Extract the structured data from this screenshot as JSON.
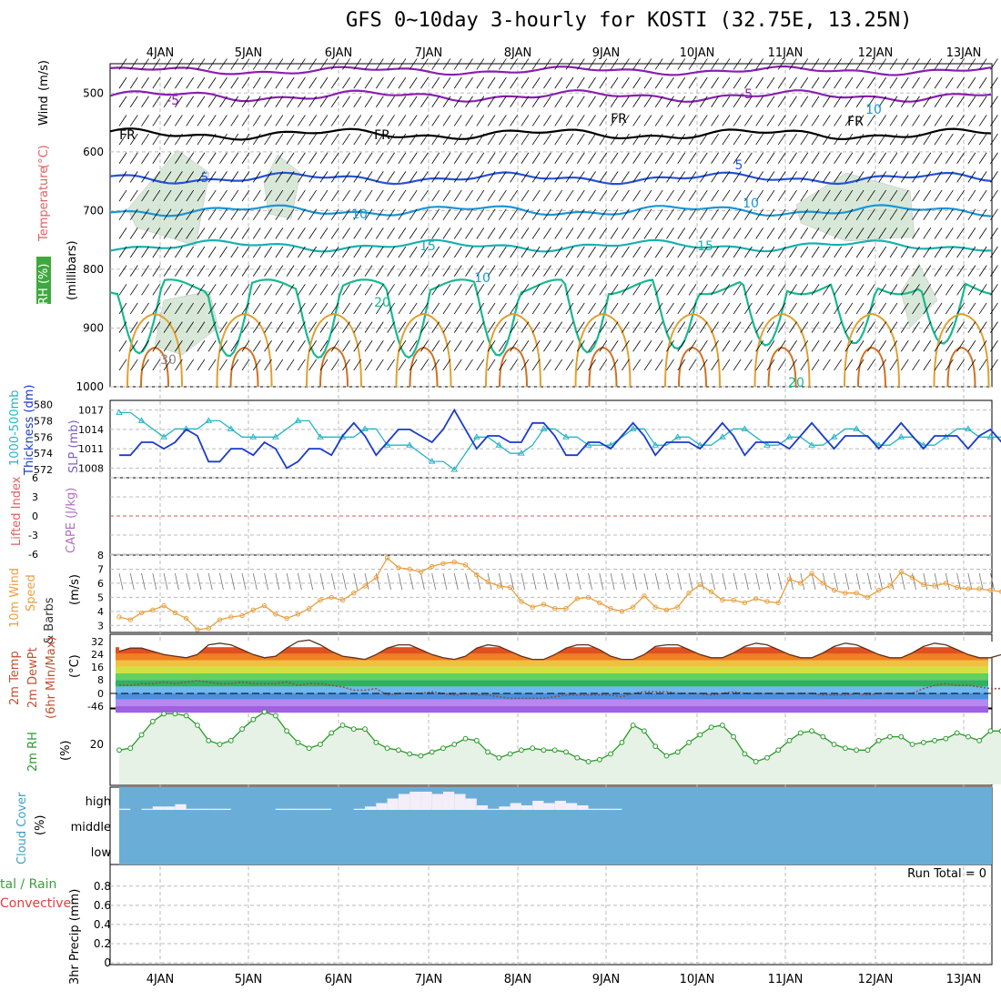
{
  "title": "GFS 0~10day 3-hourly for KOSTI (32.75E, 13.25N)",
  "date_labels": [
    "4JAN",
    "5JAN",
    "6JAN",
    "7JAN",
    "8JAN",
    "9JAN",
    "10JAN",
    "11JAN",
    "12JAN",
    "13JAN"
  ],
  "colors": {
    "grid": "#bbbbbb",
    "rh_shade": "#cfe3cf",
    "temp_minus5": "#8a1fb0",
    "freezing": "#000000",
    "temp_5": "#2452d8",
    "temp_10": "#1a96d8",
    "temp_15": "#18b0b0",
    "temp_20": "#18b890",
    "temp_warm": "#e0a030",
    "slp": "#1a3cc8",
    "thickness": "#29b4c4",
    "lifted_zero": "#e05050",
    "wind10m": "#e8a040",
    "cloud_bg": "#6aaed8",
    "rh2m_line": "#2a9a2a"
  },
  "chart_data": [
    {
      "type": "contour",
      "panel": "upper-air",
      "ylabel_parts": [
        "RH (%)",
        "Temperature",
        "(°C)",
        "Wind",
        "(m/s)"
      ],
      "ylabel_sub": "(millibars)",
      "y_ticks": [
        500,
        600,
        700,
        800,
        900,
        1000
      ],
      "ylim": [
        1000,
        450
      ],
      "contour_labels": [
        "-5",
        "-5",
        "FR",
        "FR",
        "FR",
        "FR",
        "5",
        "5",
        "10",
        "10",
        "15",
        "15",
        "20",
        "20",
        "10",
        "10",
        "30"
      ],
      "isotherms": [
        {
          "name": "-5",
          "pressure_mb": 505
        },
        {
          "name": "FR",
          "pressure_mb": 570
        },
        {
          "name": "5",
          "pressure_mb": 645
        },
        {
          "name": "10",
          "pressure_mb": 700
        },
        {
          "name": "15",
          "pressure_mb": 760
        }
      ]
    },
    {
      "type": "line",
      "panel": "slp-thickness",
      "ylabel_left": [
        "1000-500mb",
        "Thickness (dm)"
      ],
      "ylabel_right": "SLP (mb)",
      "left_ticks": [
        572,
        574,
        576,
        578,
        580
      ],
      "right_ticks": [
        1008,
        1011,
        1014,
        1017
      ],
      "left_lim": [
        571,
        580.5
      ],
      "right_lim": [
        1006.5,
        1018.5
      ],
      "series": [
        {
          "name": "SLP (mb)",
          "axis": "right",
          "values": [
            1010,
            1010,
            1012,
            1012,
            1011,
            1012,
            1014,
            1013,
            1009,
            1009,
            1011,
            1011,
            1010,
            1012,
            1011,
            1008,
            1009,
            1011,
            1011,
            1010,
            1013,
            1015,
            1013,
            1010,
            1012,
            1014,
            1014,
            1013,
            1012,
            1014,
            1017,
            1014,
            1011,
            1013,
            1013,
            1012,
            1012,
            1015,
            1015,
            1013,
            1010,
            1010,
            1012,
            1012,
            1011,
            1013,
            1015,
            1013,
            1010,
            1012,
            1012,
            1012,
            1011,
            1013,
            1015,
            1013,
            1010,
            1012,
            1012,
            1012,
            1011,
            1013,
            1015,
            1013,
            1011,
            1013,
            1013,
            1013,
            1011,
            1013,
            1015,
            1013,
            1011,
            1013,
            1013,
            1013,
            1011,
            1013,
            1014,
            1012,
            1010,
            1010,
            1012,
            1012
          ]
        },
        {
          "name": "Thickness (dm)",
          "axis": "left",
          "values": [
            579,
            579,
            578,
            577,
            576,
            577,
            577,
            577,
            578,
            578,
            577,
            576,
            576,
            576,
            576,
            577,
            578,
            578,
            576,
            576,
            576,
            576,
            577,
            577,
            575,
            575,
            575,
            574,
            573,
            573,
            572,
            574,
            576,
            576,
            575,
            574,
            574,
            575,
            577,
            577,
            576,
            576,
            575,
            575,
            575,
            576,
            577,
            577,
            575,
            575,
            576,
            576,
            575,
            575,
            576,
            577,
            577,
            576,
            575,
            575,
            576,
            576,
            575,
            575,
            576,
            577,
            577,
            576,
            575,
            575,
            576,
            576,
            575,
            575,
            576,
            577,
            577,
            576,
            576,
            576,
            577,
            577,
            576,
            577
          ]
        }
      ]
    },
    {
      "type": "line",
      "panel": "stability",
      "ylabel_left": "Lifted Index",
      "ylabel_right": "CAPE (J/kg)",
      "y_ticks": [
        6,
        3,
        0,
        -3,
        -6
      ],
      "ylim": [
        -6,
        6
      ],
      "series": []
    },
    {
      "type": "line",
      "panel": "wind10m",
      "ylabel": [
        "10m Wind",
        "Speed",
        "& Barbs",
        "(m/s)"
      ],
      "y_ticks": [
        3,
        4,
        5,
        6,
        7,
        8
      ],
      "ylim": [
        2.5,
        8
      ],
      "series": [
        {
          "name": "10m Wind Speed",
          "values": [
            3.6,
            3.4,
            3.9,
            4.1,
            4.4,
            3.9,
            3.5,
            2.7,
            2.8,
            3.4,
            3.6,
            3.7,
            4.1,
            4.4,
            3.8,
            3.5,
            3.8,
            4.2,
            4.8,
            5.0,
            4.8,
            5.3,
            5.8,
            6.4,
            7.8,
            7.1,
            7.0,
            6.8,
            7.2,
            7.4,
            7.5,
            7.3,
            6.6,
            6.1,
            5.8,
            5.7,
            4.7,
            4.3,
            4.5,
            4.2,
            4.2,
            4.9,
            5.0,
            4.6,
            4.2,
            4.0,
            4.3,
            5.1,
            4.3,
            4.1,
            4.3,
            5.3,
            5.9,
            5.4,
            4.8,
            4.8,
            4.6,
            4.9,
            4.7,
            4.6,
            6.3,
            6.0,
            6.7,
            6.0,
            5.5,
            5.3,
            5.3,
            5.0,
            5.5,
            5.8,
            6.8,
            6.4,
            5.9,
            5.8,
            6.0,
            5.7,
            5.6,
            5.6,
            5.5,
            5.4,
            6.2,
            5.4,
            5.6,
            5.9
          ]
        }
      ]
    },
    {
      "type": "area",
      "panel": "temp2m",
      "ylabel": [
        "2m Temp",
        "2m DewPt",
        "(6hr Min/Max)",
        "(°C)"
      ],
      "y_ticks": [
        32,
        24,
        16,
        8,
        0,
        -46
      ],
      "series": [
        {
          "name": "2m Temp",
          "values": [
            26,
            28,
            28,
            26,
            24,
            23,
            22,
            24,
            30,
            31,
            30,
            27,
            24,
            22,
            23,
            28,
            32,
            33,
            30,
            26,
            23,
            22,
            21,
            24,
            28,
            30,
            30,
            27,
            24,
            22,
            21,
            23,
            28,
            30,
            29,
            26,
            23,
            21,
            21,
            24,
            28,
            30,
            30,
            27,
            23,
            21,
            21,
            24,
            29,
            30,
            30,
            27,
            24,
            22,
            22,
            25,
            29,
            31,
            30,
            27,
            24,
            22,
            22,
            25,
            29,
            31,
            30,
            27,
            24,
            22,
            22,
            25,
            29,
            31,
            30,
            27,
            24,
            22,
            22,
            24,
            29,
            30,
            28,
            23
          ]
        },
        {
          "name": "2m DewPt",
          "values": [
            5,
            5,
            6,
            6,
            7,
            6,
            7,
            8,
            7,
            6,
            6,
            7,
            6,
            6,
            6,
            7,
            5,
            6,
            6,
            5,
            4,
            2,
            2,
            3,
            -1,
            0,
            0,
            0,
            1,
            0,
            -1,
            0,
            -1,
            -1,
            -2,
            -3,
            -3,
            -3,
            -3,
            -2,
            -1,
            -1,
            -1,
            -1,
            -1,
            -2,
            0,
            1,
            1,
            1,
            0,
            0,
            0,
            -1,
            0,
            1,
            0,
            0,
            0,
            0,
            0,
            0,
            0,
            -1,
            -1,
            -1,
            0,
            -1,
            0,
            0,
            0,
            0,
            3,
            5,
            6,
            5,
            5,
            4,
            3,
            3,
            3,
            2,
            1,
            1
          ]
        }
      ]
    },
    {
      "type": "area",
      "panel": "rh2m",
      "ylabel": [
        "2m RH",
        "(%)"
      ],
      "y_ticks": [
        20
      ],
      "series": [
        {
          "name": "2m RH",
          "values": [
            17,
            18,
            25,
            32,
            36,
            36,
            35,
            30,
            22,
            20,
            22,
            28,
            33,
            37,
            35,
            27,
            21,
            18,
            20,
            26,
            30,
            28,
            28,
            21,
            18,
            17,
            15,
            14,
            16,
            18,
            20,
            23,
            22,
            16,
            13,
            15,
            17,
            18,
            17,
            17,
            16,
            13,
            11,
            12,
            15,
            21,
            30,
            27,
            19,
            14,
            16,
            21,
            25,
            29,
            30,
            24,
            15,
            11,
            13,
            17,
            22,
            26,
            27,
            24,
            20,
            18,
            17,
            17,
            22,
            24,
            24,
            20,
            21,
            22,
            23,
            26,
            24,
            22,
            27,
            27,
            27,
            27,
            26,
            37
          ]
        }
      ]
    },
    {
      "type": "bar",
      "panel": "cloud",
      "ylabel": [
        "Cloud Cover",
        "(%)"
      ],
      "y_ticks": [
        "high",
        "middle",
        "low"
      ],
      "series": [
        {
          "name": "high cloud (%)",
          "values": [
            5,
            0,
            5,
            15,
            15,
            25,
            5,
            5,
            5,
            5,
            0,
            0,
            0,
            0,
            5,
            5,
            5,
            5,
            5,
            0,
            0,
            5,
            15,
            30,
            50,
            70,
            80,
            80,
            70,
            80,
            70,
            50,
            20,
            5,
            15,
            30,
            20,
            40,
            30,
            40,
            30,
            20,
            5,
            5,
            5,
            0,
            0,
            0,
            0,
            0,
            0,
            0,
            0,
            0,
            0,
            0,
            0,
            0,
            0,
            0,
            0,
            0,
            0,
            0,
            0,
            0,
            0,
            0,
            0,
            0,
            0,
            0,
            0,
            0,
            0,
            0,
            0,
            0,
            0,
            0,
            0,
            0,
            0,
            0
          ]
        }
      ]
    },
    {
      "type": "bar",
      "panel": "precip",
      "ylabel_left": [
        "tal / Rain",
        "Convective"
      ],
      "ylabel_right": "3hr Precip (mm)",
      "y_ticks": [
        "0",
        "0.2",
        "0.4",
        "0.6",
        "0.8"
      ],
      "ylim": [
        0,
        0.95
      ],
      "run_total": "Run Total = 0",
      "series": [
        {
          "name": "3hr Precip (mm)",
          "values": []
        }
      ]
    }
  ]
}
